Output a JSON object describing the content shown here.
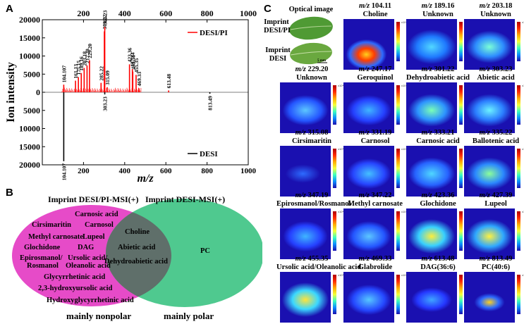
{
  "panel_labels": {
    "a": "A",
    "b": "B",
    "c": "C"
  },
  "chart_data": {
    "type": "bar",
    "title": "",
    "xlabel": "m/z",
    "ylabel": "Ion intensity",
    "xlim": [
      0,
      1000
    ],
    "ylim": [
      -20000,
      20000
    ],
    "x_ticks": [
      200,
      400,
      600,
      800,
      1000
    ],
    "x_bottom_ticks": [
      200,
      400,
      600,
      800,
      1000
    ],
    "y_tick_labels": [
      "20000",
      "15000",
      "10000",
      "5000",
      "0",
      "5000",
      "10000",
      "15000",
      "20000"
    ],
    "y_tick_values": [
      20000,
      15000,
      10000,
      5000,
      0,
      -5000,
      -10000,
      -15000,
      -20000
    ],
    "series": [
      {
        "name": "DESI/PI",
        "color": "#ff0000",
        "direction": "up",
        "peaks": [
          {
            "mz": 104.107,
            "i": 2100,
            "label": "104.107"
          },
          {
            "mz": 161.13,
            "i": 3200,
            "label": "161.13"
          },
          {
            "mz": 175.15,
            "i": 4200,
            "label": "175.15"
          },
          {
            "mz": 189.16,
            "i": 5300,
            "label": "189.16"
          },
          {
            "mz": 203.18,
            "i": 6700,
            "label": "203.18"
          },
          {
            "mz": 217.2,
            "i": 7400,
            "label": "217.20"
          },
          {
            "mz": 229.2,
            "i": 8800,
            "label": "229.20"
          },
          {
            "mz": 285.22,
            "i": 2600,
            "label": "285.22"
          },
          {
            "mz": 301.22,
            "i": 16800,
            "label": "301.22"
          },
          {
            "mz": 303.23,
            "i": 18000,
            "label": "303.23"
          },
          {
            "mz": 315.09,
            "i": 1400,
            "label": "315.09"
          },
          {
            "mz": 423.36,
            "i": 7700,
            "label": "423.36"
          },
          {
            "mz": 437.34,
            "i": 6400,
            "label": "437.34"
          },
          {
            "mz": 439.36,
            "i": 5700,
            "label": "439.36"
          },
          {
            "mz": 455.35,
            "i": 4800,
            "label": "455.35"
          },
          {
            "mz": 469.33,
            "i": 1100,
            "label": "469.33"
          },
          {
            "mz": 613.48,
            "i": 500,
            "label": "613.48"
          }
        ]
      },
      {
        "name": "DESI",
        "color": "#000000",
        "direction": "down",
        "peaks": [
          {
            "mz": 104.107,
            "i": 19000,
            "label": "104.107"
          },
          {
            "mz": 303.23,
            "i": 600,
            "label": "303.23"
          },
          {
            "mz": 813.49,
            "i": 400,
            "label": "813.49"
          }
        ]
      }
    ],
    "legend": [
      {
        "name": "DESI/PI",
        "color": "#ff0000",
        "position": "upper-right"
      },
      {
        "name": "DESI",
        "color": "#000000",
        "position": "lower-right"
      }
    ]
  },
  "venn": {
    "left_title": "Imprint DESI/PI-MSI(+)",
    "right_title": "Imprint DESI-MSI(+)",
    "left_color": "#e64bc8",
    "right_color": "#4fc98f",
    "overlap_color": "#5f6f6a",
    "left_only": [
      "Carnosic acid",
      "Cirsimaritin",
      "Carnosol",
      "Methyl carnosate",
      "Lupeol",
      "Glochidone",
      "DAG",
      "Epirosmanol/",
      "Rosmanol",
      "Ursolic acid/",
      "Oleanolic acid",
      "Glycyrrhetinic acid",
      "2,3-hydroxyursolic acid",
      "Hydroxyglycyrrhetinic acid"
    ],
    "both": [
      "Choline",
      "Abietic acid",
      "Dehydroabietic acid"
    ],
    "right_only": [
      "PC"
    ],
    "left_footer": "mainly nonpolar",
    "right_footer": "mainly polar"
  },
  "optical": {
    "title": "Optical image",
    "label1": "Imprint DESI/PI",
    "label2": "Imprint DESI",
    "scalebar": "5 mm"
  },
  "tiles": [
    {
      "mz": "104.11",
      "name": "Choline"
    },
    {
      "mz": "189.16",
      "name": "Unknown"
    },
    {
      "mz": "203.18",
      "name": "Unknown"
    },
    {
      "mz": "229.20",
      "name": "Unknown"
    },
    {
      "mz": "247.17",
      "name": "Geroquinol"
    },
    {
      "mz": "301.22",
      "name": "Dehydroabietic acid"
    },
    {
      "mz": "303.23",
      "name": "Abietic acid"
    },
    {
      "mz": "315.08",
      "name": "Cirsimaritin"
    },
    {
      "mz": "331.19",
      "name": "Carnosol"
    },
    {
      "mz": "333.21",
      "name": "Carnosic acid"
    },
    {
      "mz": "335.22",
      "name": "Ballotenic acid"
    },
    {
      "mz": "347.19",
      "name": "Epirosmanol/Rosmanol"
    },
    {
      "mz": "347.22",
      "name": "Methyl carnosate"
    },
    {
      "mz": "423.36",
      "name": "Glochidone"
    },
    {
      "mz": "427.39",
      "name": "Lupeol"
    },
    {
      "mz": "455.35",
      "name": "Ursolic acid/Oleanolic acid"
    },
    {
      "mz": "469.33",
      "name": "Glabrolide"
    },
    {
      "mz": "613.48",
      "name": "DAG(36:6)"
    },
    {
      "mz": "813.49",
      "name": "PC(40:6)"
    }
  ],
  "mz_prefix": "m/z",
  "colorbar_exp": "x10⁴"
}
